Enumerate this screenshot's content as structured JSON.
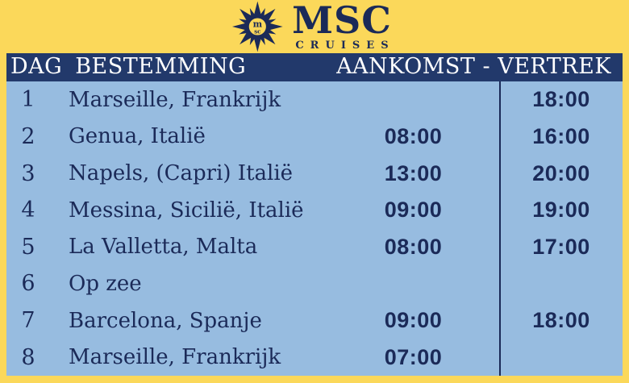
{
  "brand": {
    "name": "MSC",
    "subtitle": "CRUISES",
    "logo_icon": "compass-rose-icon",
    "logo_monogram_top": "m",
    "logo_monogram_bottom": "sc"
  },
  "colors": {
    "background": "#FBD85A",
    "header_bg": "#22396B",
    "table_bg": "#97BCE0",
    "text": "#1B2A58",
    "header_text": "#FFFFFF"
  },
  "table": {
    "headers": {
      "day": "DAG",
      "destination": "BESTEMMING",
      "arrival_departure": "AANKOMST - VERTREK"
    },
    "rows": [
      {
        "day": "1",
        "destination": "Marseille, Frankrijk",
        "arrival": "",
        "departure": "18:00"
      },
      {
        "day": "2",
        "destination": "Genua, Italië",
        "arrival": "08:00",
        "departure": "16:00"
      },
      {
        "day": "3",
        "destination": "Napels, (Capri) Italië",
        "arrival": "13:00",
        "departure": "20:00"
      },
      {
        "day": "4",
        "destination": "Messina, Sicilië, Italië",
        "arrival": "09:00",
        "departure": "19:00"
      },
      {
        "day": "5",
        "destination": "La Valletta, Malta",
        "arrival": "08:00",
        "departure": "17:00"
      },
      {
        "day": "6",
        "destination": "Op zee",
        "arrival": "",
        "departure": ""
      },
      {
        "day": "7",
        "destination": "Barcelona, Spanje",
        "arrival": "09:00",
        "departure": "18:00"
      },
      {
        "day": "8",
        "destination": "Marseille, Frankrijk",
        "arrival": "07:00",
        "departure": ""
      }
    ]
  }
}
